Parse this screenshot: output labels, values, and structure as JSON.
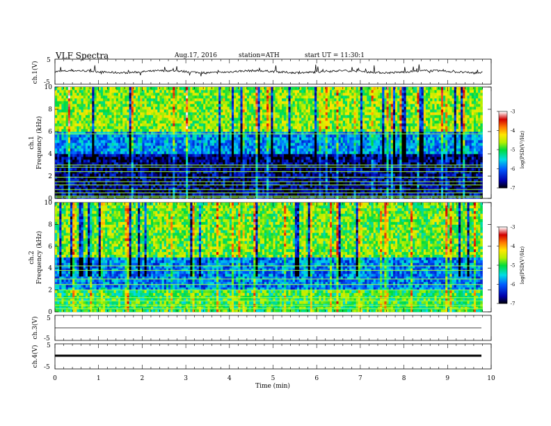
{
  "header": {
    "title": "VLF  Spectra",
    "date": "Aug.17, 2016",
    "station": "station=ATH",
    "start_ut": "start  UT  =   11:30:1"
  },
  "axes": {
    "time_label": "Time  (min)",
    "time_ticks": [
      "0",
      "1",
      "2",
      "3",
      "4",
      "5",
      "6",
      "7",
      "8",
      "9",
      "10"
    ],
    "freq_ticks": [
      "0",
      "2",
      "4",
      "6",
      "8",
      "10"
    ],
    "ch1_time_label": "ch.1(V)",
    "ch1_label": "ch.1",
    "ch2_label": "ch.2",
    "freq_label": "Frequency  (kHz)",
    "ch3_label": "ch.3(V)",
    "ch4_label": "ch.4(V)",
    "v_tick_top": "5",
    "v_tick_bottom": "-5",
    "v_tick_mid_top": "-5",
    "v_tick_mid_bottom": "5"
  },
  "colorbar": {
    "label": "log(PSD(V²/Hz)",
    "ticks": [
      "-3",
      "-4",
      "-5",
      "-6",
      "-7"
    ],
    "colors": [
      "#ffffff",
      "#d60000",
      "#ff8c00",
      "#ffff00",
      "#00e000",
      "#00c8ff",
      "#0000d0",
      "#000000"
    ]
  },
  "chart_data": [
    {
      "type": "line",
      "title": "ch.1(V)",
      "xlim": [
        0,
        10
      ],
      "ylim": [
        -5,
        5
      ],
      "xlabel": "Time  (min)",
      "ylabel": "ch.1(V)",
      "note_values": "broadband time series near 0 V with frequent spikes",
      "baseline": 0
    },
    {
      "type": "heatmap",
      "channel": "ch.1",
      "xlim": [
        0,
        9.8
      ],
      "ylim": [
        0,
        10
      ],
      "xlabel": "Time  (min)",
      "ylabel": "Frequency  (kHz)",
      "colorbar_range": [
        -7,
        -3
      ],
      "freq_bands_khz": [
        {
          "range": [
            6,
            10
          ],
          "log_psd": -4.7
        },
        {
          "range": [
            4,
            6
          ],
          "log_psd": -5.8
        },
        {
          "range": [
            0,
            4
          ],
          "log_psd": -6.7
        }
      ],
      "narrowband_lines_khz": [
        0.1,
        0.2,
        0.5,
        0.8,
        1.2,
        1.5,
        1.9,
        2.4,
        2.8,
        3.0,
        5.8
      ]
    },
    {
      "type": "heatmap",
      "channel": "ch.2",
      "xlim": [
        0,
        9.8
      ],
      "ylim": [
        0,
        10
      ],
      "xlabel": "Time  (min)",
      "ylabel": "Frequency  (kHz)",
      "colorbar_range": [
        -7,
        -3
      ],
      "freq_bands_khz": [
        {
          "range": [
            5,
            10
          ],
          "log_psd": -4.8
        },
        {
          "range": [
            2,
            5
          ],
          "log_psd": -5.9
        },
        {
          "range": [
            0,
            2
          ],
          "log_psd": -5.0
        }
      ],
      "narrowband_lines_khz": [
        0.3,
        0.6,
        1.0,
        1.3,
        2.0,
        2.5,
        3.0,
        3.8,
        4.2
      ]
    },
    {
      "type": "line",
      "title": "ch.3(V)",
      "xlim": [
        0,
        10
      ],
      "ylim": [
        -5,
        5
      ],
      "xlabel": "Time  (min)",
      "ylabel": "ch.3(V)",
      "baseline": 0
    },
    {
      "type": "line",
      "title": "ch.4(V)",
      "xlim": [
        0,
        10
      ],
      "ylim": [
        -5,
        5
      ],
      "xlabel": "Time  (min)",
      "ylabel": "ch.4(V)",
      "baseline": -0.5
    }
  ]
}
